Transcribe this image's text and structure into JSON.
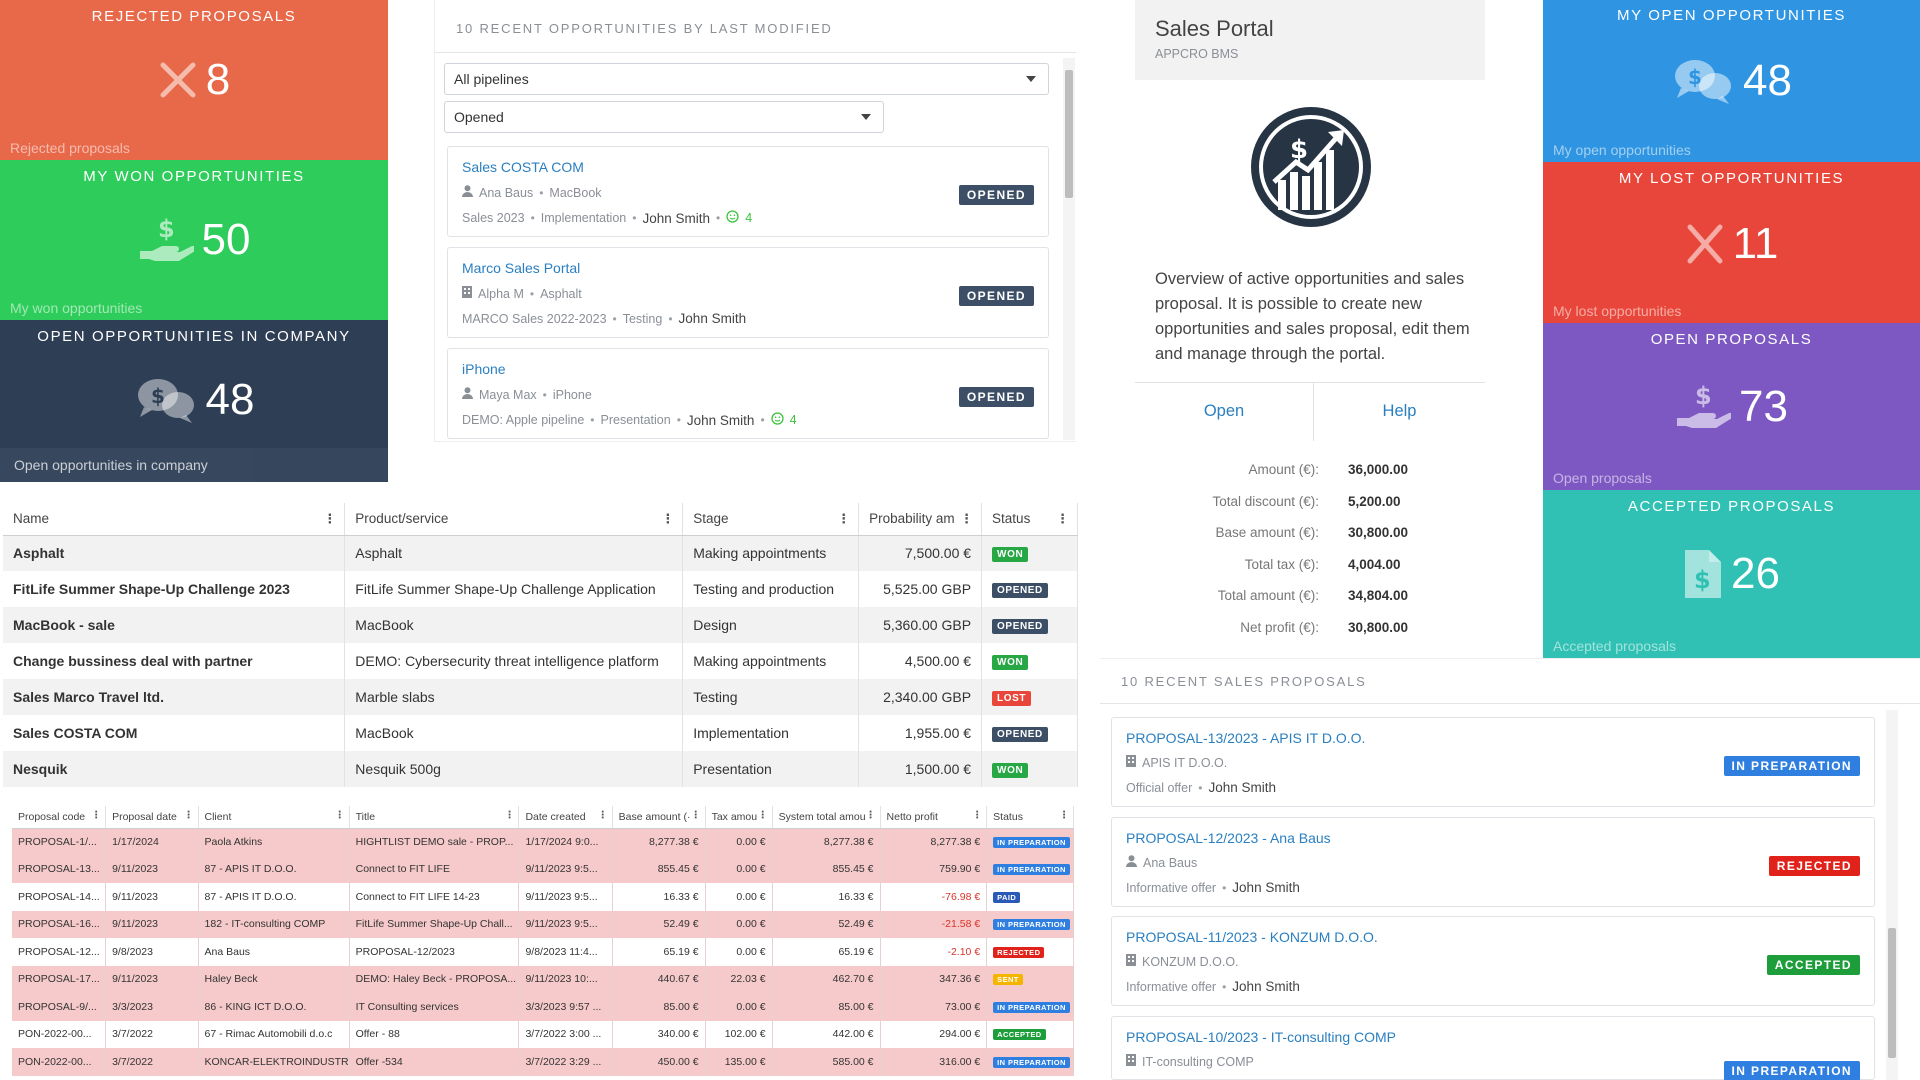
{
  "tiles": {
    "rejected": {
      "title": "REJECTED PROPOSALS",
      "value": "8",
      "footer": "Rejected proposals",
      "color": "#e8684a",
      "icon": "x-icon"
    },
    "won": {
      "title": "MY WON OPPORTUNITIES",
      "value": "50",
      "footer": "My won opportunities",
      "color": "#2ecc5a",
      "icon": "hand-money-icon"
    },
    "company": {
      "title": "OPEN OPPORTUNITIES IN COMPANY",
      "value": "48",
      "footer": "Open opportunities in company",
      "color": "#2e3e55",
      "icon": "chat-money-icon"
    },
    "my_open": {
      "title": "MY OPEN OPPORTUNITIES",
      "value": "48",
      "footer": "My open opportunities",
      "color": "#2f95e2",
      "icon": "chat-money-icon"
    },
    "lost": {
      "title": "MY LOST OPPORTUNITIES",
      "value": "11",
      "footer": "My lost opportunities",
      "color": "#e8463a",
      "icon": "x-icon"
    },
    "open_proposals": {
      "title": "OPEN PROPOSALS",
      "value": "73",
      "footer": "Open proposals",
      "color": "#7e58c2",
      "icon": "hand-money-icon"
    },
    "accepted": {
      "title": "ACCEPTED PROPOSALS",
      "value": "26",
      "footer": "Accepted proposals",
      "color": "#31c1b4",
      "icon": "document-money-icon"
    }
  },
  "recent_opps": {
    "title": "10 RECENT OPPORTUNITIES BY LAST MODIFIED",
    "pipeline_select": "All pipelines",
    "status_select": "Opened",
    "cards": [
      {
        "title": "Sales COSTA COM",
        "who_icon": "person-icon",
        "who": "Ana Baus",
        "product": "MacBook",
        "pipeline": "Sales 2023",
        "stage": "Implementation",
        "owner": "John Smith",
        "score": "4",
        "status": "OPENED"
      },
      {
        "title": "Marco Sales Portal",
        "who_icon": "building-icon",
        "who": "Alpha M",
        "product": "Asphalt",
        "pipeline": "MARCO Sales 2022-2023",
        "stage": "Testing",
        "owner": "John Smith",
        "score": "",
        "status": "OPENED"
      },
      {
        "title": "iPhone",
        "who_icon": "person-icon",
        "who": "Maya Max",
        "product": "iPhone",
        "pipeline": "DEMO: Apple pipeline",
        "stage": "Presentation",
        "owner": "John Smith",
        "score": "4",
        "status": "OPENED"
      }
    ]
  },
  "portal": {
    "title": "Sales Portal",
    "subtitle": "APPCRO BMS",
    "logo_icon": "chart-growth-dollar-icon",
    "description": "Overview of active opportunities and sales proposal. It is possible to create new opportunities and sales proposal, edit them and manage through the portal.",
    "open_label": "Open",
    "help_label": "Help",
    "summary": [
      {
        "label": "Amount (€):",
        "value": "36,000.00"
      },
      {
        "label": "Total discount (€):",
        "value": "5,200.00"
      },
      {
        "label": "Base amount (€):",
        "value": "30,800.00"
      },
      {
        "label": "Total tax (€):",
        "value": "4,004.00"
      },
      {
        "label": "Total amount (€):",
        "value": "34,804.00"
      },
      {
        "label": "Net profit (€):",
        "value": "30,800.00"
      }
    ]
  },
  "opp_table": {
    "columns": [
      "Name",
      "Product/service",
      "Stage",
      "Probability am",
      "Status"
    ],
    "rows": [
      {
        "name": "Asphalt",
        "product": "Asphalt",
        "stage": "Making appointments",
        "amount": "7,500.00 €",
        "status": "WON"
      },
      {
        "name": "FitLife Summer Shape-Up Challenge 2023",
        "product": "FitLife Summer Shape-Up Challenge Application",
        "stage": "Testing and production",
        "amount": "5,525.00 GBP",
        "status": "OPENED"
      },
      {
        "name": "MacBook - sale",
        "product": "MacBook",
        "stage": "Design",
        "amount": "5,360.00 GBP",
        "status": "OPENED"
      },
      {
        "name": "Change bussiness deal with partner",
        "product": "DEMO: Cybersecurity threat intelligence platform",
        "stage": "Making appointments",
        "amount": "4,500.00 €",
        "status": "WON"
      },
      {
        "name": "Sales Marco Travel ltd.",
        "product": "Marble slabs",
        "stage": "Testing",
        "amount": "2,340.00 GBP",
        "status": "LOST"
      },
      {
        "name": "Sales COSTA COM",
        "product": "MacBook",
        "stage": "Implementation",
        "amount": "1,955.00 €",
        "status": "OPENED"
      },
      {
        "name": "Nesquik",
        "product": "Nesquik 500g",
        "stage": "Presentation",
        "amount": "1,500.00 €",
        "status": "WON"
      }
    ]
  },
  "prop_table": {
    "columns": [
      "Proposal code",
      "Proposal date",
      "Client",
      "Title",
      "Date created",
      "Base amount (·",
      "Tax amou",
      "System total amou",
      "Netto profit",
      "Status"
    ],
    "rows": [
      {
        "code": "PROPOSAL-1/...",
        "date": "1/17/2024",
        "client": "Paola Atkins",
        "title": "HIGHTLIST DEMO sale - PROP...",
        "created": "1/17/2024 9:0...",
        "base": "8,277.38 €",
        "tax": "0.00 €",
        "total": "8,277.38 €",
        "profit": "8,277.38 €",
        "status": "IN PREPARATION",
        "neg": true
      },
      {
        "code": "PROPOSAL-13...",
        "date": "9/11/2023",
        "client": "87 - APIS IT D.O.O.",
        "title": "Connect to FIT LIFE",
        "created": "9/11/2023 9:5...",
        "base": "855.45 €",
        "tax": "0.00 €",
        "total": "855.45 €",
        "profit": "759.90 €",
        "status": "IN PREPARATION",
        "neg": true
      },
      {
        "code": "PROPOSAL-14...",
        "date": "9/11/2023",
        "client": "87 - APIS IT D.O.O.",
        "title": "Connect to FIT LIFE 14-23",
        "created": "9/11/2023 9:5...",
        "base": "16.33 €",
        "tax": "0.00 €",
        "total": "16.33 €",
        "profit": "-76.98 €",
        "status": "PAID",
        "neg": false
      },
      {
        "code": "PROPOSAL-16...",
        "date": "9/11/2023",
        "client": "182 - IT-consulting COMP",
        "title": "FitLife Summer Shape-Up Chall...",
        "created": "9/11/2023 9:5...",
        "base": "52.49 €",
        "tax": "0.00 €",
        "total": "52.49 €",
        "profit": "-21.58 €",
        "status": "IN PREPARATION",
        "neg": true
      },
      {
        "code": "PROPOSAL-12...",
        "date": "9/8/2023",
        "client": "Ana Baus",
        "title": "PROPOSAL-12/2023",
        "created": "9/8/2023 11:4...",
        "base": "65.19 €",
        "tax": "0.00 €",
        "total": "65.19 €",
        "profit": "-2.10 €",
        "status": "REJECTED",
        "neg": false
      },
      {
        "code": "PROPOSAL-17...",
        "date": "9/11/2023",
        "client": "Haley Beck",
        "title": "DEMO: Haley Beck - PROPOSA...",
        "created": "9/11/2023 10:...",
        "base": "440.67 €",
        "tax": "22.03 €",
        "total": "462.70 €",
        "profit": "347.36 €",
        "status": "SENT",
        "neg": true
      },
      {
        "code": "PROPOSAL-9/...",
        "date": "3/3/2023",
        "client": "86 - KING ICT D.O.O.",
        "title": "IT Consulting services",
        "created": "3/3/2023 9:57 ...",
        "base": "85.00 €",
        "tax": "0.00 €",
        "total": "85.00 €",
        "profit": "73.00 €",
        "status": "IN PREPARATION",
        "neg": true
      },
      {
        "code": "PON-2022-00...",
        "date": "3/7/2022",
        "client": "67 - Rimac Automobili d.o.c",
        "title": "Offer - 88",
        "created": "3/7/2022 3:00 ...",
        "base": "340.00 €",
        "tax": "102.00 €",
        "total": "442.00 €",
        "profit": "294.00 €",
        "status": "ACCEPTED",
        "neg": false
      },
      {
        "code": "PON-2022-00...",
        "date": "3/7/2022",
        "client": "KONCAR-ELEKTROINDUSTR",
        "title": "Offer -534",
        "created": "3/7/2022 3:29 ...",
        "base": "450.00 €",
        "tax": "135.00 €",
        "total": "585.00 €",
        "profit": "316.00 €",
        "status": "IN PREPARATION",
        "neg": true
      }
    ]
  },
  "recent_props": {
    "title": "10 RECENT SALES PROPOSALS",
    "cards": [
      {
        "title": "PROPOSAL-13/2023 - APIS IT D.O.O.",
        "who_icon": "building-icon",
        "who": "APIS IT D.O.O.",
        "type": "Official offer",
        "owner": "John Smith",
        "status": "IN PREPARATION"
      },
      {
        "title": "PROPOSAL-12/2023 - Ana Baus",
        "who_icon": "person-icon",
        "who": "Ana Baus",
        "type": "Informative offer",
        "owner": "John Smith",
        "status": "REJECTED"
      },
      {
        "title": "PROPOSAL-11/2023 - KONZUM D.O.O.",
        "who_icon": "building-icon",
        "who": "KONZUM D.O.O.",
        "type": "Informative offer",
        "owner": "John Smith",
        "status": "ACCEPTED"
      },
      {
        "title": "PROPOSAL-10/2023 - IT-consulting COMP",
        "who_icon": "building-icon",
        "who": "IT-consulting COMP",
        "type": "",
        "owner": "",
        "status": "IN PREPARATION"
      }
    ]
  },
  "status_colors": {
    "WON": "#28a745",
    "OPENED": "#3d4f66",
    "LOST": "#e8463a",
    "IN PREPARATION": "#2f7fe0",
    "PAID": "#2a5ab8",
    "REJECTED": "#e0221b",
    "SENT": "#f5b400",
    "ACCEPTED": "#1e9e3a"
  }
}
